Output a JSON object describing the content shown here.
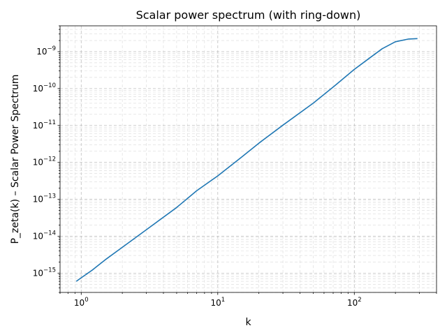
{
  "chart_data": {
    "type": "line",
    "title": "Scalar power spectrum (with ring-down)",
    "xlabel": "k",
    "ylabel": "P_zeta(k) – Scalar Power Spectrum",
    "xscale": "log",
    "yscale": "log",
    "xlim": [
      0.7,
      400
    ],
    "ylim": [
      3e-16,
      5e-09
    ],
    "x_ticks": [
      {
        "base": "10",
        "exp": "0",
        "value": 1
      },
      {
        "base": "10",
        "exp": "1",
        "value": 10
      },
      {
        "base": "10",
        "exp": "2",
        "value": 100
      }
    ],
    "y_ticks": [
      {
        "base": "10",
        "exp": "−15",
        "value": 1e-15
      },
      {
        "base": "10",
        "exp": "−14",
        "value": 1e-14
      },
      {
        "base": "10",
        "exp": "−13",
        "value": 1e-13
      },
      {
        "base": "10",
        "exp": "−12",
        "value": 1e-12
      },
      {
        "base": "10",
        "exp": "−11",
        "value": 1e-11
      },
      {
        "base": "10",
        "exp": "−10",
        "value": 1e-10
      },
      {
        "base": "10",
        "exp": "−9",
        "value": 1e-09
      }
    ],
    "grid": true,
    "series_color": "#1f77b4",
    "series": [
      {
        "x": [
          0.92,
          1.0,
          1.2,
          1.5,
          2,
          3,
          5,
          7,
          10,
          15,
          20,
          30,
          50,
          70,
          100,
          130,
          160,
          200,
          250,
          290
        ],
        "y": [
          6e-16,
          7.5e-16,
          1.2e-15,
          2.3e-15,
          5e-15,
          1.5e-14,
          6e-14,
          1.7e-13,
          4.3e-13,
          1.4e-12,
          3.3e-12,
          1.02e-11,
          4e-11,
          1.1e-10,
          3.3e-10,
          6.8e-10,
          1.2e-09,
          1.85e-09,
          2.2e-09,
          2.25e-09
        ]
      }
    ]
  }
}
